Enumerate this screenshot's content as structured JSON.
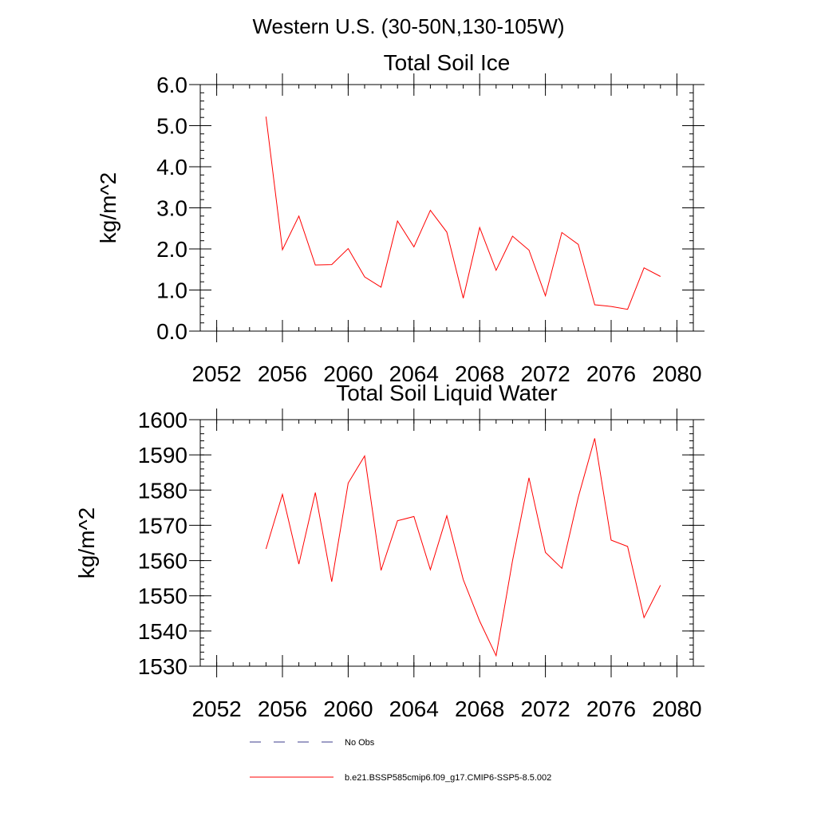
{
  "figure": {
    "title": "Western U.S. (30-50N,130-105W)"
  },
  "legend": [
    {
      "label": "No Obs",
      "color": "#3c3c8c",
      "style": "dashed"
    },
    {
      "label": "b.e21.BSSP585cmip6.f09_g17.CMIP6-SSP5-8.5.002",
      "color": "#ff0000",
      "style": "solid"
    }
  ],
  "chart_data": [
    {
      "type": "line",
      "title": "Total Soil Ice",
      "xlabel": "",
      "ylabel": "kg/m^2",
      "xlim": [
        2051,
        2081
      ],
      "ylim": [
        0,
        6
      ],
      "xticks": [
        2052,
        2056,
        2060,
        2064,
        2068,
        2072,
        2076,
        2080
      ],
      "yticks": [
        0,
        1,
        2,
        3,
        4,
        5,
        6
      ],
      "ytick_labels": [
        "0.0",
        "1.0",
        "2.0",
        "3.0",
        "4.0",
        "5.0",
        "6.0"
      ],
      "grid": false,
      "series": [
        {
          "name": "b.e21.BSSP585cmip6.f09_g17.CMIP6-SSP5-8.5.002",
          "color": "#ff0000",
          "x": [
            2055,
            2056,
            2057,
            2058,
            2059,
            2060,
            2061,
            2062,
            2063,
            2064,
            2065,
            2066,
            2067,
            2068,
            2069,
            2070,
            2071,
            2072,
            2073,
            2074,
            2075,
            2076,
            2077,
            2078,
            2079
          ],
          "y": [
            5.22,
            1.98,
            2.8,
            1.61,
            1.62,
            2.01,
            1.32,
            1.07,
            2.68,
            2.05,
            2.94,
            2.41,
            0.8,
            2.52,
            1.48,
            2.31,
            1.97,
            0.86,
            2.4,
            2.11,
            0.64,
            0.6,
            0.53,
            1.54,
            1.33
          ]
        }
      ]
    },
    {
      "type": "line",
      "title": "Total Soil Liquid Water",
      "xlabel": "",
      "ylabel": "kg/m^2",
      "xlim": [
        2051,
        2081
      ],
      "ylim": [
        1530,
        1600
      ],
      "xticks": [
        2052,
        2056,
        2060,
        2064,
        2068,
        2072,
        2076,
        2080
      ],
      "yticks": [
        1530,
        1540,
        1550,
        1560,
        1570,
        1580,
        1590,
        1600
      ],
      "ytick_labels": [
        "1530",
        "1540",
        "1550",
        "1560",
        "1570",
        "1580",
        "1590",
        "1600"
      ],
      "grid": false,
      "series": [
        {
          "name": "b.e21.BSSP585cmip6.f09_g17.CMIP6-SSP5-8.5.002",
          "color": "#ff0000",
          "x": [
            2055,
            2056,
            2057,
            2058,
            2059,
            2060,
            2061,
            2062,
            2063,
            2064,
            2065,
            2066,
            2067,
            2068,
            2069,
            2070,
            2071,
            2072,
            2073,
            2074,
            2075,
            2076,
            2077,
            2078,
            2079
          ],
          "y": [
            1563.3,
            1578.8,
            1559,
            1579.3,
            1554,
            1582,
            1589.7,
            1557.2,
            1571.3,
            1572.5,
            1557.4,
            1572.7,
            1554.6,
            1542.8,
            1533,
            1560,
            1583.5,
            1562.3,
            1557.8,
            1578,
            1594.7,
            1565.8,
            1564,
            1543.8,
            1553
          ]
        }
      ]
    }
  ]
}
